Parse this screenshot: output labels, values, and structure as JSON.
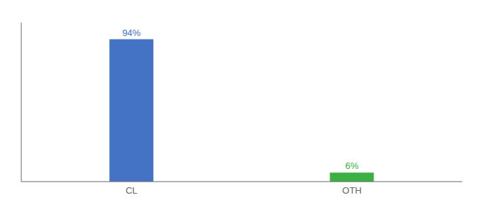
{
  "chart_data": {
    "type": "bar",
    "categories": [
      "CL",
      "OTH"
    ],
    "values": [
      94,
      6
    ],
    "value_labels": [
      "94%",
      "6%"
    ],
    "data_labels": true,
    "colors": [
      "#4472C4",
      "#3CB043"
    ],
    "ylim": [
      0,
      105
    ],
    "tick_labels": "x",
    "grid": false
  }
}
